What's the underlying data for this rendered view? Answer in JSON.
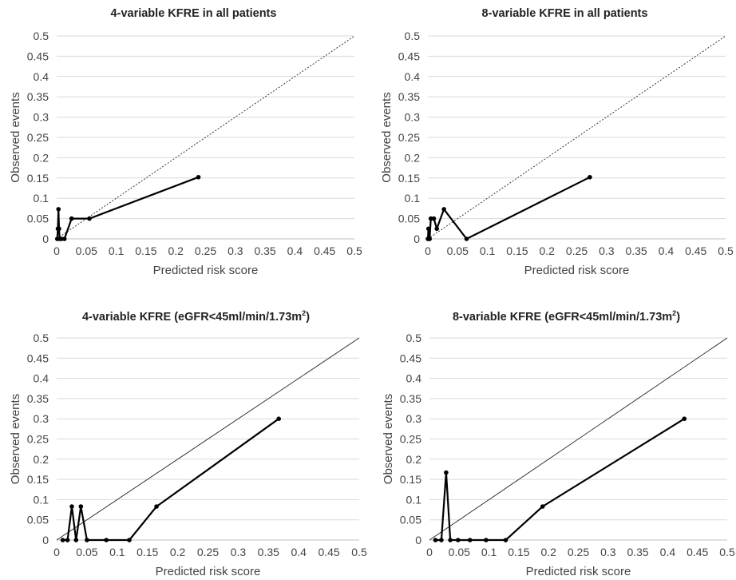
{
  "chart_data": [
    {
      "type": "line",
      "title": "4-variable KFRE in all patients",
      "title_sup": "",
      "title_suffix": "",
      "xlabel": "Predicted risk score",
      "ylabel": "Observed events",
      "xlim": [
        0,
        0.5
      ],
      "ylim": [
        0,
        0.5
      ],
      "x_ticks": [
        "0",
        "0.05",
        "0.1",
        "0.15",
        "0.2",
        "0.25",
        "0.3",
        "0.35",
        "0.4",
        "0.45",
        "0.5"
      ],
      "y_ticks": [
        "0",
        "0.05",
        "0.1",
        "0.15",
        "0.2",
        "0.25",
        "0.3",
        "0.35",
        "0.4",
        "0.45",
        "0.5"
      ],
      "grid": "horizontal",
      "reference_line": {
        "style": "dotted",
        "from": [
          0,
          0
        ],
        "to": [
          0.5,
          0.5
        ]
      },
      "series": [
        {
          "x": [
            0.001,
            0.002,
            0.003,
            0.004,
            0.005,
            0.008,
            0.013,
            0.025,
            0.055,
            0.238
          ],
          "y": [
            0.0,
            0.025,
            0.073,
            0.025,
            0.0,
            0.0,
            0.0,
            0.05,
            0.05,
            0.152
          ]
        }
      ]
    },
    {
      "type": "line",
      "title": "8-variable KFRE in all patients",
      "title_sup": "",
      "title_suffix": "",
      "xlabel": "Predicted risk score",
      "ylabel": "Observed events",
      "xlim": [
        0,
        0.5
      ],
      "ylim": [
        0,
        0.5
      ],
      "x_ticks": [
        "0",
        "0.05",
        "0.1",
        "0.15",
        "0.2",
        "0.25",
        "0.3",
        "0.35",
        "0.4",
        "0.45",
        "0.5"
      ],
      "y_ticks": [
        "0",
        "0.05",
        "0.1",
        "0.15",
        "0.2",
        "0.25",
        "0.3",
        "0.35",
        "0.4",
        "0.45",
        "0.5"
      ],
      "grid": "horizontal",
      "reference_line": {
        "style": "dotted",
        "from": [
          0,
          0
        ],
        "to": [
          0.5,
          0.5
        ]
      },
      "series": [
        {
          "x": [
            0.0,
            0.001,
            0.002,
            0.003,
            0.005,
            0.01,
            0.015,
            0.027,
            0.065,
            0.272
          ],
          "y": [
            0.0,
            0.025,
            0.0,
            0.0,
            0.05,
            0.05,
            0.025,
            0.073,
            0.0,
            0.152
          ]
        }
      ]
    },
    {
      "type": "line",
      "title": "4-variable KFRE (eGFR<45ml/min/1.73m",
      "title_sup": "2",
      "title_suffix": ")",
      "xlabel": "Predicted risk score",
      "ylabel": "Observed events",
      "xlim": [
        0,
        0.5
      ],
      "ylim": [
        0,
        0.5
      ],
      "x_ticks": [
        "0",
        "0.05",
        "0.1",
        "0.15",
        "0.2",
        "0.25",
        "0.3",
        "0.35",
        "0.4",
        "0.45",
        "0.5"
      ],
      "y_ticks": [
        "0",
        "0.05",
        "0.1",
        "0.15",
        "0.2",
        "0.25",
        "0.3",
        "0.35",
        "0.4",
        "0.45",
        "0.5"
      ],
      "grid": "horizontal",
      "reference_line": {
        "style": "solid",
        "from": [
          0,
          0
        ],
        "to": [
          0.5,
          0.5
        ]
      },
      "series": [
        {
          "x": [
            0.01,
            0.018,
            0.025,
            0.032,
            0.04,
            0.05,
            0.082,
            0.12,
            0.165,
            0.367
          ],
          "y": [
            0.0,
            0.0,
            0.083,
            0.0,
            0.083,
            0.0,
            0.0,
            0.0,
            0.083,
            0.3
          ]
        }
      ]
    },
    {
      "type": "line",
      "title": "8-variable KFRE (eGFR<45ml/min/1.73m",
      "title_sup": "2",
      "title_suffix": ")",
      "xlabel": "Predicted risk score",
      "ylabel": "Observed events",
      "xlim": [
        0,
        0.5
      ],
      "ylim": [
        0,
        0.5
      ],
      "x_ticks": [
        "0",
        "0.05",
        "0.1",
        "0.15",
        "0.2",
        "0.25",
        "0.3",
        "0.35",
        "0.4",
        "0.45",
        "0.5"
      ],
      "y_ticks": [
        "0",
        "0.05",
        "0.1",
        "0.15",
        "0.2",
        "0.25",
        "0.3",
        "0.35",
        "0.4",
        "0.45",
        "0.5"
      ],
      "grid": "horizontal",
      "reference_line": {
        "style": "solid",
        "from": [
          0,
          0
        ],
        "to": [
          0.5,
          0.5
        ]
      },
      "series": [
        {
          "x": [
            0.01,
            0.02,
            0.028,
            0.035,
            0.048,
            0.068,
            0.095,
            0.128,
            0.19,
            0.428
          ],
          "y": [
            0.0,
            0.0,
            0.167,
            0.0,
            0.0,
            0.0,
            0.0,
            0.0,
            0.083,
            0.3
          ]
        }
      ]
    }
  ]
}
